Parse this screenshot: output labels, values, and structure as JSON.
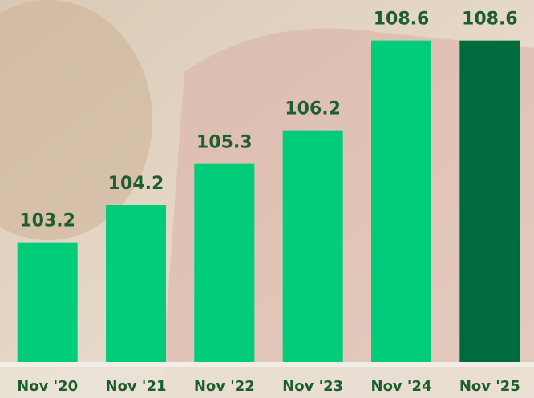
{
  "chart_data": {
    "type": "bar",
    "categories": [
      "Nov '20",
      "Nov '21",
      "Nov '22",
      "Nov '23",
      "Nov '24",
      "Nov '25"
    ],
    "values": [
      103.2,
      104.2,
      105.3,
      106.2,
      108.6,
      108.6
    ],
    "colors": [
      "#00cc7a",
      "#00cc7a",
      "#00cc7a",
      "#00cc7a",
      "#00cc7a",
      "#006b3d"
    ],
    "ylim": [
      100,
      109
    ]
  }
}
